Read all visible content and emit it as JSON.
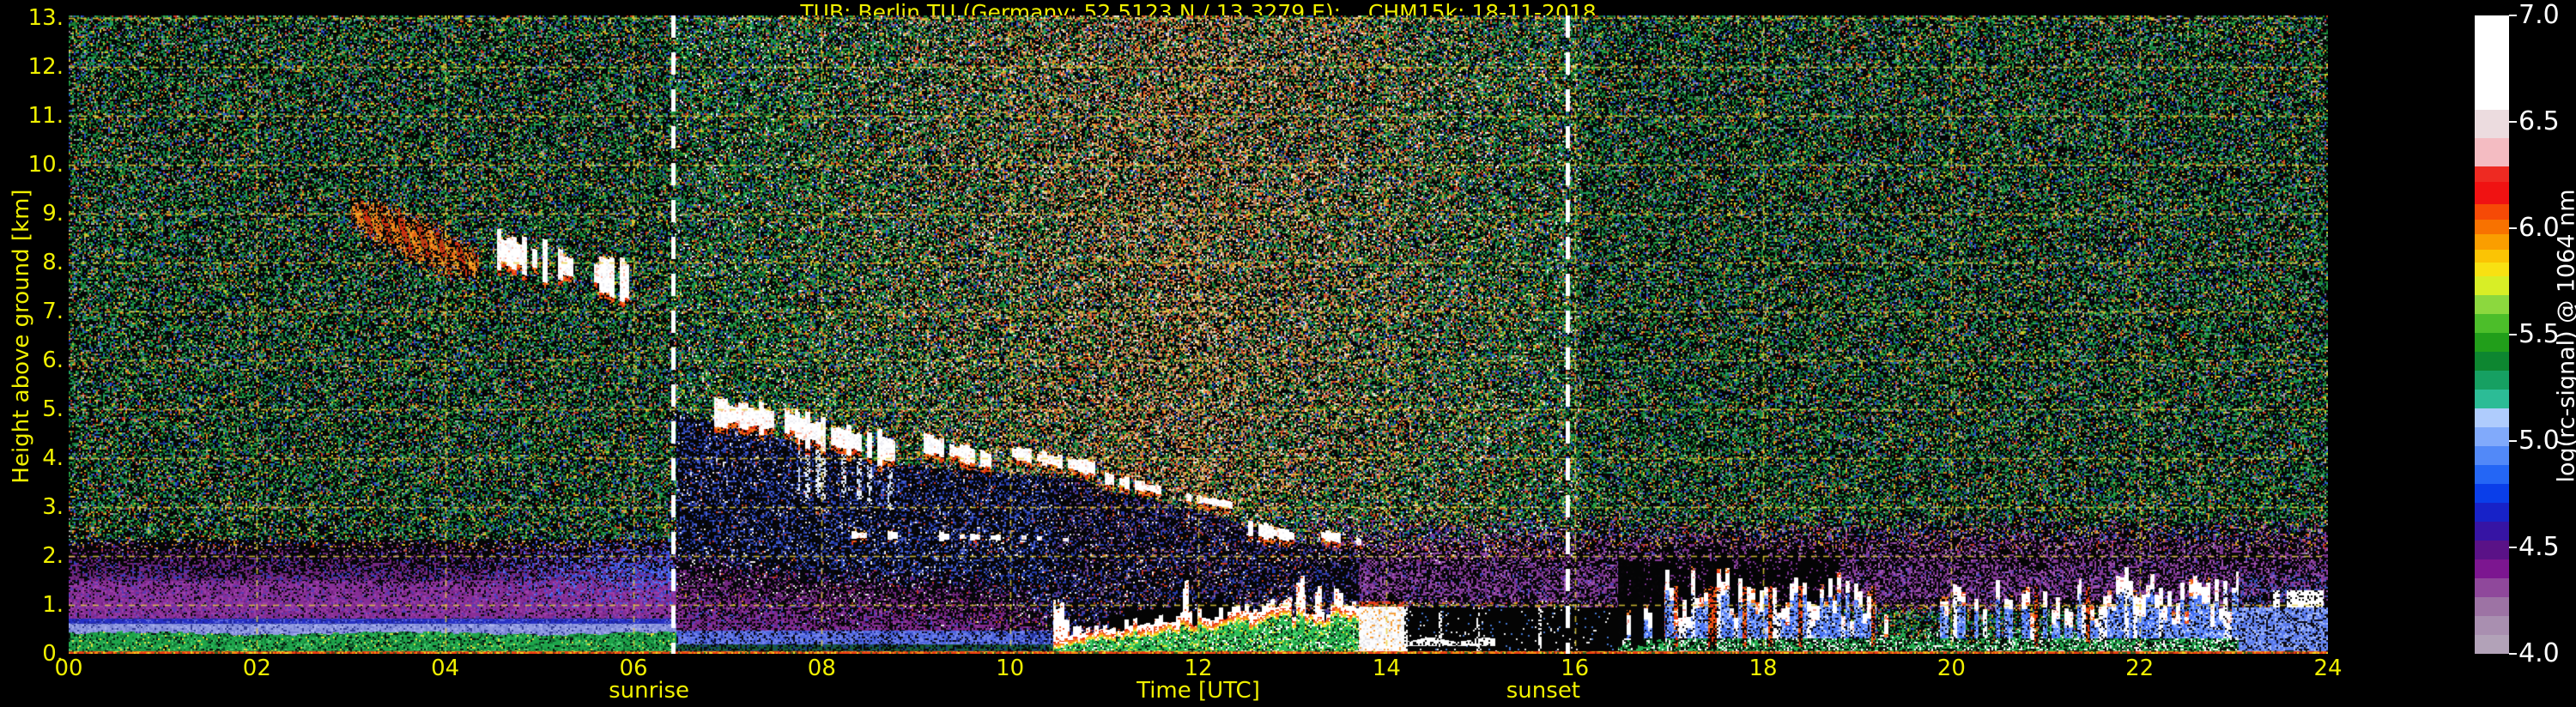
{
  "title": {
    "text": "TUB: Berlin TU (Germany; 52.5123 N / 13.3279 E):    CHM15k: 18-11-2018",
    "color": "#f0f000"
  },
  "axes": {
    "text_color": "#f0f000",
    "grid_color": "#e8d23c",
    "x": {
      "label": "Time [UTC]",
      "tick_labels": [
        "00",
        "02",
        "04",
        "06",
        "08",
        "10",
        "12",
        "14",
        "16",
        "18",
        "20",
        "22",
        "24"
      ],
      "tick_hours": [
        0,
        2,
        4,
        6,
        8,
        10,
        12,
        14,
        16,
        18,
        20,
        22,
        24
      ],
      "range_hours": [
        0,
        24
      ]
    },
    "y": {
      "label": "Height above ground [km]",
      "tick_labels": [
        "0.",
        "1.",
        "2.",
        "3.",
        "4.",
        "5.",
        "6.",
        "7.",
        "8.",
        "9.",
        "10.",
        "11.",
        "12.",
        "13."
      ],
      "tick_km": [
        0,
        1,
        2,
        3,
        4,
        5,
        6,
        7,
        8,
        9,
        10,
        11,
        12,
        13
      ],
      "range_km": [
        0,
        13.05
      ]
    }
  },
  "sun_events": {
    "line_color": "#ffffff",
    "sunrise": {
      "label": "sunrise",
      "hour": 6.42
    },
    "sunset": {
      "label": "sunset",
      "hour": 15.92
    }
  },
  "colorbar": {
    "label": "log(rc-signal) @ 1064 nm",
    "text_color": "#ffffff",
    "min": 4.0,
    "max": 7.0,
    "tick_values": [
      4.0,
      4.5,
      5.0,
      5.5,
      6.0,
      6.5,
      7.0
    ],
    "tick_labels": [
      "4.0",
      "4.5",
      "5.0",
      "5.5",
      "6.0",
      "6.5",
      "7.0"
    ],
    "segments": [
      {
        "color": "#b2a2b8",
        "w": 1
      },
      {
        "color": "#a98fb0",
        "w": 1
      },
      {
        "color": "#9d73a4",
        "w": 1
      },
      {
        "color": "#8f489b",
        "w": 1
      },
      {
        "color": "#7c1690",
        "w": 1
      },
      {
        "color": "#5a1287",
        "w": 1
      },
      {
        "color": "#3614a4",
        "w": 1
      },
      {
        "color": "#1722c8",
        "w": 1
      },
      {
        "color": "#0a3ee9",
        "w": 1
      },
      {
        "color": "#2466f5",
        "w": 1
      },
      {
        "color": "#5289f8",
        "w": 1
      },
      {
        "color": "#81aafb",
        "w": 1
      },
      {
        "color": "#afccfd",
        "w": 1
      },
      {
        "color": "#2cbc96",
        "w": 1
      },
      {
        "color": "#16a062",
        "w": 1
      },
      {
        "color": "#0d8630",
        "w": 1
      },
      {
        "color": "#219e1a",
        "w": 1
      },
      {
        "color": "#4cbe2a",
        "w": 1
      },
      {
        "color": "#8cd83e",
        "w": 1
      },
      {
        "color": "#d8ee26",
        "w": 1
      },
      {
        "color": "#f8e112",
        "w": 0.7
      },
      {
        "color": "#fbc404",
        "w": 0.7
      },
      {
        "color": "#fa9e00",
        "w": 0.8
      },
      {
        "color": "#f87200",
        "w": 0.8
      },
      {
        "color": "#f64a06",
        "w": 0.8
      },
      {
        "color": "#f01212",
        "w": 1.2
      },
      {
        "color": "#ee2a22",
        "w": 0.8
      },
      {
        "color": "#f4bcc2",
        "w": 1.5
      },
      {
        "color": "#ecdcdf",
        "w": 1.5
      },
      {
        "color": "#ffffff",
        "w": 5
      }
    ]
  },
  "chart_data": {
    "type": "heatmap",
    "station": "TUB: Berlin TU",
    "location": "Germany; 52.5123 N / 13.3279 E",
    "instrument": "CHM15k",
    "date": "18-11-2018",
    "quantity": "log(rc-signal) @ 1064 nm",
    "xlabel": "Time [UTC]",
    "ylabel": "Height above ground [km]",
    "xlim_hours": [
      0,
      24
    ],
    "ylim_km": [
      0,
      13.05
    ],
    "value_range_log": [
      4.0,
      7.0
    ],
    "grid": "dashed yellow, 2 h x 1 km",
    "legend_position": "right colorbar",
    "features": [
      {
        "name": "near-surface-overlap-artifact",
        "kind": "surface_artifact",
        "hours": [
          0,
          24
        ],
        "height_km": [
          0,
          0.06
        ]
      },
      {
        "name": "nocturnal-stable-boundary-layer",
        "kind": "nocturnal_layers",
        "hours": [
          0,
          6.45
        ],
        "green_top_km": 0.42,
        "lavender_top_km": 0.62,
        "blue_line_top_km": 0.72,
        "purple_top_km": 1.5,
        "fade_top_km": 2.35
      },
      {
        "name": "pre-sunrise-blue-wedge",
        "kind": "blue_wedge",
        "hours": [
          4.25,
          6.45
        ],
        "height_km": [
          0.95,
          2.45
        ]
      },
      {
        "name": "morning-residual-layer",
        "kind": "morning_residual",
        "hours": [
          6.45,
          10.75
        ],
        "purple_top_profile": [
          [
            6.45,
            1.35
          ],
          [
            8,
            1.05
          ],
          [
            9.5,
            0.9
          ],
          [
            10.75,
            0.62
          ]
        ],
        "blue_top_km": 0.48,
        "surface_top_km": 0.2,
        "clear_blue_below_cloud_km": [
          [
            6.45,
            5.15
          ],
          [
            7.7,
            4.6
          ],
          [
            8.8,
            4.1
          ],
          [
            10,
            3.95
          ],
          [
            10.75,
            3.8
          ]
        ]
      },
      {
        "name": "daytime-convective-layer",
        "kind": "convective_layer",
        "hours": [
          10.45,
          13.7
        ],
        "top_profile": [
          [
            10.45,
            0.12
          ],
          [
            11,
            0.3
          ],
          [
            12,
            0.55
          ],
          [
            13,
            0.66
          ],
          [
            13.7,
            0.72
          ]
        ],
        "cloud_base_above": [
          [
            10.75,
            3.8
          ],
          [
            11,
            3.55
          ],
          [
            12,
            3.15
          ],
          [
            13,
            2.5
          ],
          [
            13.7,
            2.25
          ]
        ]
      },
      {
        "name": "surface-fog-blob",
        "kind": "fog_blob",
        "hours": [
          13.7,
          14.18
        ],
        "height_km": [
          0,
          0.98
        ]
      },
      {
        "name": "post-fog-quiet-zone",
        "kind": "quiet_zone",
        "hours": [
          14.18,
          16.45
        ],
        "height_km": [
          0,
          0.95
        ],
        "white_stripe": {
          "hours": [
            14.18,
            15.15
          ],
          "height_km": [
            0.16,
            0.3
          ]
        }
      },
      {
        "name": "morning-cirrus-streaks",
        "kind": "cirrus_streaks",
        "hours": [
          3.0,
          4.35
        ],
        "center_km": [
          [
            3.0,
            9.05
          ],
          [
            4.35,
            7.95
          ]
        ],
        "half_thickness_km": 0.62
      },
      {
        "name": "descending-cloud-segments",
        "kind": "cloud_segments",
        "columns": [
          "t_start_h",
          "t_end_h",
          "center_start_km",
          "center_end_km",
          "thickness_km",
          "red_fringe",
          "virga",
          "gap_fraction"
        ],
        "segments": [
          [
            6.85,
            7.75,
            4.95,
            4.72,
            0.5,
            1,
            0,
            0.04
          ],
          [
            7.75,
            8.78,
            4.62,
            4.15,
            0.55,
            1,
            1,
            0.08
          ],
          [
            9.08,
            9.8,
            4.32,
            3.95,
            0.3,
            1,
            0,
            0.15
          ],
          [
            10.02,
            10.9,
            4.12,
            3.8,
            0.22,
            0.6,
            0,
            0.2
          ],
          [
            11.0,
            11.6,
            3.6,
            3.35,
            0.2,
            0.6,
            0,
            0.25
          ],
          [
            11.85,
            12.42,
            3.22,
            3.02,
            0.18,
            0.6,
            0,
            0.3
          ],
          [
            12.52,
            13.15,
            2.58,
            2.36,
            0.24,
            0.8,
            0,
            0.3
          ],
          [
            13.3,
            13.78,
            2.44,
            2.28,
            0.16,
            0.6,
            0,
            0.3
          ],
          [
            8.3,
            9.95,
            2.44,
            2.38,
            0.14,
            0.2,
            0,
            0.55
          ],
          [
            10.05,
            10.62,
            2.4,
            2.34,
            0.1,
            0,
            0,
            0.6
          ],
          [
            4.55,
            5.95,
            8.28,
            7.62,
            0.62,
            1,
            0,
            0.22
          ]
        ]
      },
      {
        "name": "evening-aerosol-cloud-columns",
        "kind": "evening_columns",
        "hours": [
          16.45,
          24
        ],
        "strength_segments": [
          [
            16.45,
            16.95,
            0.45
          ],
          [
            16.95,
            19.2,
            1.0
          ],
          [
            19.2,
            19.85,
            0.22
          ],
          [
            19.85,
            21.35,
            0.6
          ],
          [
            21.35,
            23.05,
            0.92
          ],
          [
            23.05,
            24.0,
            0.55
          ]
        ],
        "attenuation_until_h": 18.8,
        "blue_haze_hours": [
          23.05,
          24.0
        ]
      },
      {
        "name": "afternoon-purple-haze",
        "kind": "purple_haze",
        "hours": [
          12.3,
          24
        ],
        "height_km": [
          0.8,
          2.9
        ]
      },
      {
        "name": "daytime-background-light",
        "kind": "day_noise",
        "hours": [
          6.42,
          15.92
        ],
        "warm_cast_peak_h": 11.8
      }
    ]
  }
}
